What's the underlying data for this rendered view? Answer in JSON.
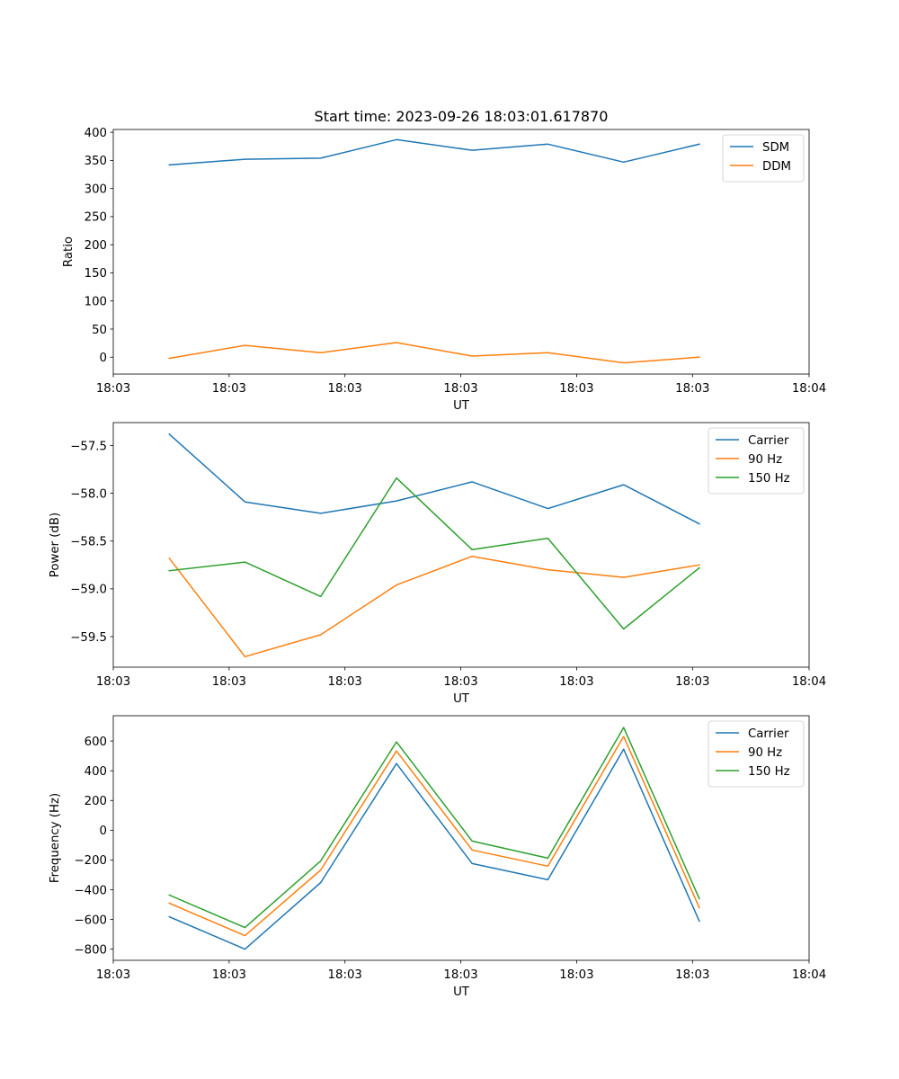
{
  "chart_data": [
    {
      "type": "line",
      "title": "Start time: 2023-09-26 18:03:01.617870",
      "xlabel": "UT",
      "ylabel": "Ratio",
      "x": [
        1,
        2,
        3,
        4,
        5,
        6,
        7,
        8
      ],
      "xlim": [
        0.26,
        9.45
      ],
      "xticks": [
        0.26,
        1.79,
        3.32,
        4.85,
        6.38,
        7.91,
        9.45
      ],
      "xtick_labels": [
        "18:03",
        "18:03",
        "18:03",
        "18:03",
        "18:03",
        "18:03",
        "18:04"
      ],
      "ylim": [
        -30,
        405
      ],
      "yticks": [
        0,
        50,
        100,
        150,
        200,
        250,
        300,
        350,
        400
      ],
      "ytick_labels": [
        "0",
        "50",
        "100",
        "150",
        "200",
        "250",
        "300",
        "350",
        "400"
      ],
      "grid": false,
      "legend": "top-right",
      "series": [
        {
          "name": "SDM",
          "color": "#1f77b4",
          "values": [
            342,
            352,
            354,
            387,
            368,
            379,
            347,
            379
          ]
        },
        {
          "name": "DDM",
          "color": "#ff7f0e",
          "values": [
            -2,
            21,
            8,
            26,
            2,
            8,
            -10,
            0
          ]
        }
      ]
    },
    {
      "type": "line",
      "title": "",
      "xlabel": "UT",
      "ylabel": "Power (dB)",
      "x": [
        1,
        2,
        3,
        4,
        5,
        6,
        7,
        8
      ],
      "xlim": [
        0.26,
        9.45
      ],
      "xticks": [
        0.26,
        1.79,
        3.32,
        4.85,
        6.38,
        7.91,
        9.45
      ],
      "xtick_labels": [
        "18:03",
        "18:03",
        "18:03",
        "18:03",
        "18:03",
        "18:03",
        "18:04"
      ],
      "ylim": [
        -59.82,
        -57.26
      ],
      "yticks": [
        -59.5,
        -59.0,
        -58.5,
        -58.0,
        -57.5
      ],
      "ytick_labels": [
        "−59.5",
        "−59.0",
        "−58.5",
        "−58.0",
        "−57.5"
      ],
      "grid": false,
      "legend": "top-right",
      "series": [
        {
          "name": "Carrier",
          "color": "#1f77b4",
          "values": [
            -57.38,
            -58.09,
            -58.21,
            -58.08,
            -57.88,
            -58.16,
            -57.91,
            -58.32
          ]
        },
        {
          "name": "90 Hz",
          "color": "#ff7f0e",
          "values": [
            -58.68,
            -59.71,
            -59.48,
            -58.96,
            -58.66,
            -58.8,
            -58.88,
            -58.75
          ]
        },
        {
          "name": "150 Hz",
          "color": "#2ca02c",
          "values": [
            -58.81,
            -58.72,
            -59.08,
            -57.84,
            -58.59,
            -58.47,
            -59.42,
            -58.78
          ]
        }
      ]
    },
    {
      "type": "line",
      "title": "",
      "xlabel": "UT",
      "ylabel": "Frequency (Hz)",
      "x": [
        1,
        2,
        3,
        4,
        5,
        6,
        7,
        8
      ],
      "xlim": [
        0.26,
        9.45
      ],
      "xticks": [
        0.26,
        1.79,
        3.32,
        4.85,
        6.38,
        7.91,
        9.45
      ],
      "xtick_labels": [
        "18:03",
        "18:03",
        "18:03",
        "18:03",
        "18:03",
        "18:03",
        "18:04"
      ],
      "ylim": [
        -875,
        770
      ],
      "yticks": [
        -800,
        -600,
        -400,
        -200,
        0,
        200,
        400,
        600
      ],
      "ytick_labels": [
        "−800",
        "−600",
        "−400",
        "−200",
        "0",
        "200",
        "400",
        "600"
      ],
      "grid": false,
      "legend": "top-right",
      "series": [
        {
          "name": "Carrier",
          "color": "#1f77b4",
          "values": [
            -582,
            -800,
            -352,
            448,
            -224,
            -333,
            545,
            -612
          ]
        },
        {
          "name": "90 Hz",
          "color": "#ff7f0e",
          "values": [
            -491,
            -709,
            -267,
            533,
            -133,
            -242,
            630,
            -521
          ]
        },
        {
          "name": "150 Hz",
          "color": "#2ca02c",
          "values": [
            -436,
            -655,
            -206,
            594,
            -73,
            -188,
            691,
            -461
          ]
        }
      ]
    }
  ]
}
